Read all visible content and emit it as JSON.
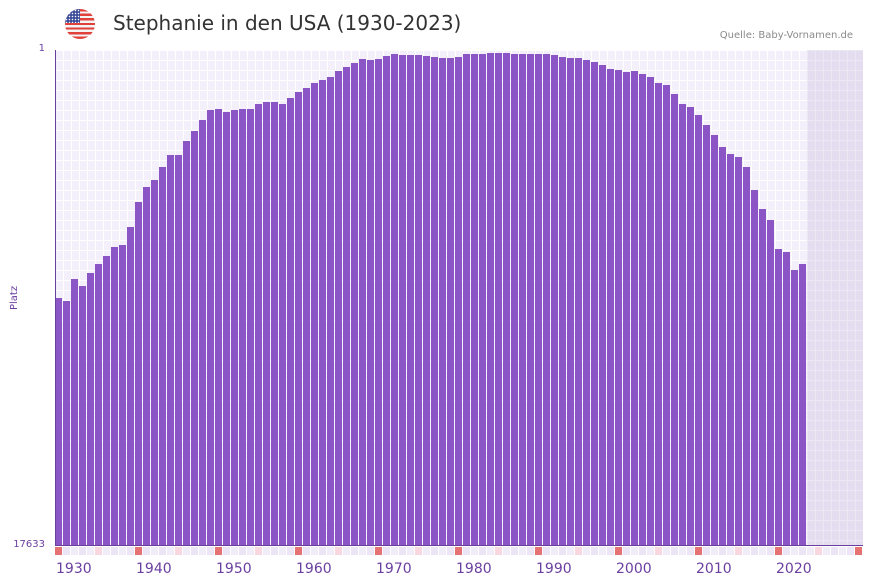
{
  "header": {
    "flag_icon": "us-flag-icon",
    "title": "Stephanie in den USA (1930-2023)",
    "source": "Quelle: Baby-Vornamen.de"
  },
  "axis": {
    "y_top_label": "1",
    "y_bottom_label": "17633",
    "y_title": "Platz",
    "x_labels": [
      "1930",
      "1940",
      "1950",
      "1960",
      "1970",
      "1980",
      "1990",
      "2000",
      "2010",
      "2020"
    ]
  },
  "colors": {
    "bar": "#8c55c6",
    "axis": "#6b3fa0",
    "decade_marker": "#e57373",
    "half_decade_marker": "#f8d7e0"
  },
  "chart_data": {
    "type": "bar",
    "title": "Stephanie in den USA (1930-2023)",
    "xlabel": "",
    "ylabel": "Platz",
    "y_scale": "log (inverted, rank 1 at top)",
    "ylim": [
      17633,
      1
    ],
    "x_range": [
      1930,
      2030
    ],
    "grid": true,
    "legend": null,
    "categories": [
      1930,
      1931,
      1932,
      1933,
      1934,
      1935,
      1936,
      1937,
      1938,
      1939,
      1940,
      1941,
      1942,
      1943,
      1944,
      1945,
      1946,
      1947,
      1948,
      1949,
      1950,
      1951,
      1952,
      1953,
      1954,
      1955,
      1956,
      1957,
      1958,
      1959,
      1960,
      1961,
      1962,
      1963,
      1964,
      1965,
      1966,
      1967,
      1968,
      1969,
      1970,
      1971,
      1972,
      1973,
      1974,
      1975,
      1976,
      1977,
      1978,
      1979,
      1980,
      1981,
      1982,
      1983,
      1984,
      1985,
      1986,
      1987,
      1988,
      1989,
      1990,
      1991,
      1992,
      1993,
      1994,
      1995,
      1996,
      1997,
      1998,
      1999,
      2000,
      2001,
      2002,
      2003,
      2004,
      2005,
      2006,
      2007,
      2008,
      2009,
      2010,
      2011,
      2012,
      2013,
      2014,
      2015,
      2016,
      2017,
      2018,
      2019,
      2020,
      2021,
      2022,
      2023
    ],
    "values": [
      134,
      142,
      92,
      106,
      82,
      69,
      58,
      49,
      47,
      33,
      20,
      15,
      13,
      10,
      8,
      8,
      6,
      5,
      4,
      3.3,
      3.2,
      3.4,
      3.3,
      3.2,
      3.2,
      2.9,
      2.8,
      2.8,
      2.9,
      2.6,
      2.3,
      2.1,
      1.9,
      1.8,
      1.7,
      1.5,
      1.4,
      1.3,
      1.2,
      1.22,
      1.2,
      1.13,
      1.08,
      1.1,
      1.1,
      1.1,
      1.13,
      1.15,
      1.18,
      1.18,
      1.15,
      1.08,
      1.08,
      1.08,
      1.06,
      1.06,
      1.06,
      1.08,
      1.08,
      1.08,
      1.08,
      1.08,
      1.1,
      1.15,
      1.18,
      1.18,
      1.22,
      1.27,
      1.34,
      1.45,
      1.48,
      1.54,
      1.5,
      1.6,
      1.7,
      1.9,
      2.0,
      2.4,
      2.9,
      3.1,
      3.6,
      4.4,
      5.4,
      6.8,
      7.8,
      8.2,
      10,
      16,
      23,
      29,
      51,
      54,
      77,
      69
    ]
  },
  "markers": {
    "decade_slots": [
      0,
      10,
      20,
      30,
      40,
      50,
      60,
      70,
      80,
      90,
      100
    ],
    "half_decade_slots": [
      5,
      15,
      25,
      35,
      45,
      55,
      65,
      75,
      85,
      95
    ]
  }
}
